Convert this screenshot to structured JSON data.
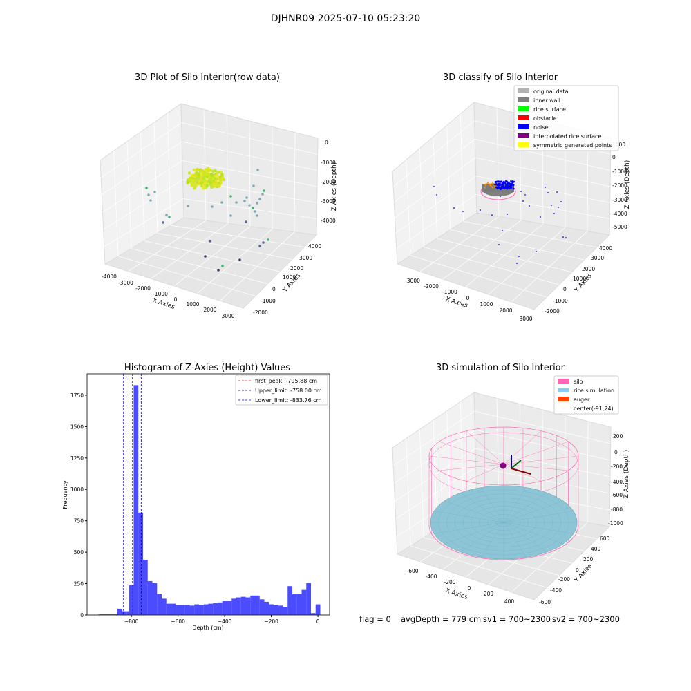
{
  "suptitle": "DJHNR09 2025-07-10 05:23:20",
  "panel_raw": {
    "title": "3D Plot of Silo Interior(row data)",
    "xlabel": "X Axies",
    "ylabel": "Y Axies",
    "zlabel": "Z Axies (Depth)",
    "xticks": [
      "-4000",
      "-3000",
      "-2000",
      "-1000",
      "0",
      "1000",
      "2000",
      "3000"
    ],
    "yticks": [
      "-2000",
      "-1000",
      "0",
      "1000",
      "2000",
      "3000",
      "4000"
    ],
    "zticks": [
      "0",
      "-1000",
      "-2000",
      "-3000",
      "-4000"
    ]
  },
  "panel_classify": {
    "title": "3D classify of Silo Interior",
    "xlabel": "X Axies",
    "ylabel": "Y Axies",
    "zlabel": "Z Axies (Depth)",
    "xticks": [
      "-3000",
      "-2000",
      "-1000",
      "0",
      "1000",
      "2000",
      "3000"
    ],
    "yticks": [
      "-2000",
      "-1000",
      "0",
      "1000",
      "2000",
      "3000",
      "4000"
    ],
    "zticks": [
      "1000",
      "0",
      "-1000",
      "-2000",
      "-3000",
      "-4000",
      "-5000"
    ],
    "legend": [
      {
        "label": "original data",
        "color": "#b3b3b3"
      },
      {
        "label": "inner wall",
        "color": "#808080"
      },
      {
        "label": "rice surface",
        "color": "#00ff00"
      },
      {
        "label": "obstacle",
        "color": "#ff0000"
      },
      {
        "label": "noise",
        "color": "#0000ff"
      },
      {
        "label": "interpolated rice surface",
        "color": "#800080"
      },
      {
        "label": "symmetric generated points",
        "color": "#ffff00"
      }
    ]
  },
  "panel_sim": {
    "title": "3D simulation of Silo Interior",
    "xlabel": "X Axies",
    "ylabel": "Y Axies",
    "zlabel": "Z Axies (Depth)",
    "xticks": [
      "-600",
      "-400",
      "-200",
      "0",
      "200",
      "400"
    ],
    "yticks": [
      "-600",
      "-400",
      "-200",
      "0",
      "200",
      "400",
      "600"
    ],
    "zticks": [
      "200",
      "0",
      "-200",
      "-400",
      "-600",
      "-800",
      "-1000"
    ],
    "legend": [
      {
        "label": "silo",
        "color": "#ff69b4"
      },
      {
        "label": "rice simulation",
        "color": "#87ceeb"
      },
      {
        "label": "auger",
        "color": "#ff4500"
      },
      {
        "label": "center(-91,24)",
        "color": ""
      }
    ]
  },
  "status_line": {
    "flag": "flag = 0",
    "avg_depth": "avgDepth = 779 cm",
    "sv1": "sv1 = 700~2300",
    "sv2": "sv2 = 700~2300"
  },
  "chart_data": [
    {
      "type": "histogram",
      "title": "Histogram of Z-Axies (Height) Values",
      "xlabel": "Depth (cm)",
      "ylabel": "Frequency",
      "xlim": [
        -990,
        50
      ],
      "ylim": [
        0,
        1920
      ],
      "xticks": [
        -800,
        -600,
        -400,
        -200,
        0
      ],
      "yticks": [
        0,
        250,
        500,
        750,
        1000,
        1250,
        1500,
        1750
      ],
      "bar_color": "#0000ff",
      "bin_width": 20,
      "bins": [
        [
          -940,
          5
        ],
        [
          -920,
          5
        ],
        [
          -900,
          5
        ],
        [
          -880,
          5
        ],
        [
          -860,
          50
        ],
        [
          -840,
          30
        ],
        [
          -820,
          30
        ],
        [
          -810,
          240
        ],
        [
          -790,
          1830
        ],
        [
          -770,
          815
        ],
        [
          -750,
          440
        ],
        [
          -730,
          270
        ],
        [
          -710,
          255
        ],
        [
          -690,
          165
        ],
        [
          -670,
          130
        ],
        [
          -650,
          90
        ],
        [
          -630,
          90
        ],
        [
          -610,
          80
        ],
        [
          -590,
          80
        ],
        [
          -570,
          80
        ],
        [
          -550,
          75
        ],
        [
          -530,
          85
        ],
        [
          -510,
          80
        ],
        [
          -490,
          85
        ],
        [
          -470,
          90
        ],
        [
          -450,
          95
        ],
        [
          -430,
          100
        ],
        [
          -410,
          110
        ],
        [
          -390,
          110
        ],
        [
          -370,
          130
        ],
        [
          -350,
          140
        ],
        [
          -330,
          145
        ],
        [
          -310,
          140
        ],
        [
          -290,
          155
        ],
        [
          -270,
          155
        ],
        [
          -250,
          125
        ],
        [
          -230,
          105
        ],
        [
          -210,
          85
        ],
        [
          -190,
          80
        ],
        [
          -170,
          75
        ],
        [
          -150,
          65
        ],
        [
          -130,
          230
        ],
        [
          -110,
          165
        ],
        [
          -90,
          165
        ],
        [
          -70,
          200
        ],
        [
          -50,
          255
        ],
        [
          -30,
          15
        ],
        [
          -10,
          85
        ]
      ],
      "vlines": [
        {
          "x": -795.88,
          "label": "first_peak: -795.88 cm",
          "color": "#ff0000"
        },
        {
          "x": -758.0,
          "label": "Upper_limit: -758.00 cm",
          "color": "#00008b"
        },
        {
          "x": -833.76,
          "label": "Lower_limit: -833.76 cm",
          "color": "#0000ff"
        }
      ]
    }
  ]
}
